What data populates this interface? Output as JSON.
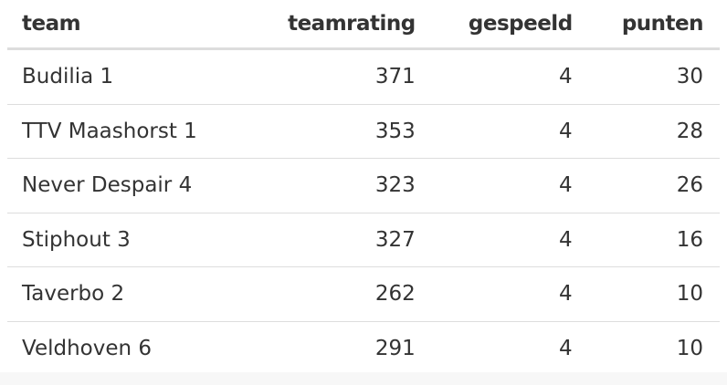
{
  "table": {
    "header": [
      "team",
      "teamrating",
      "gespeeld",
      "punten"
    ],
    "rows": [
      [
        "Budilia 1",
        371,
        4,
        30
      ],
      [
        "TTV Maashorst 1",
        353,
        4,
        28
      ],
      [
        "Never Despair 4",
        323,
        4,
        26
      ],
      [
        "Stiphout 3",
        327,
        4,
        16
      ],
      [
        "Taverbo 2",
        262,
        4,
        10
      ],
      [
        "Veldhoven 6",
        291,
        4,
        10
      ]
    ]
  }
}
